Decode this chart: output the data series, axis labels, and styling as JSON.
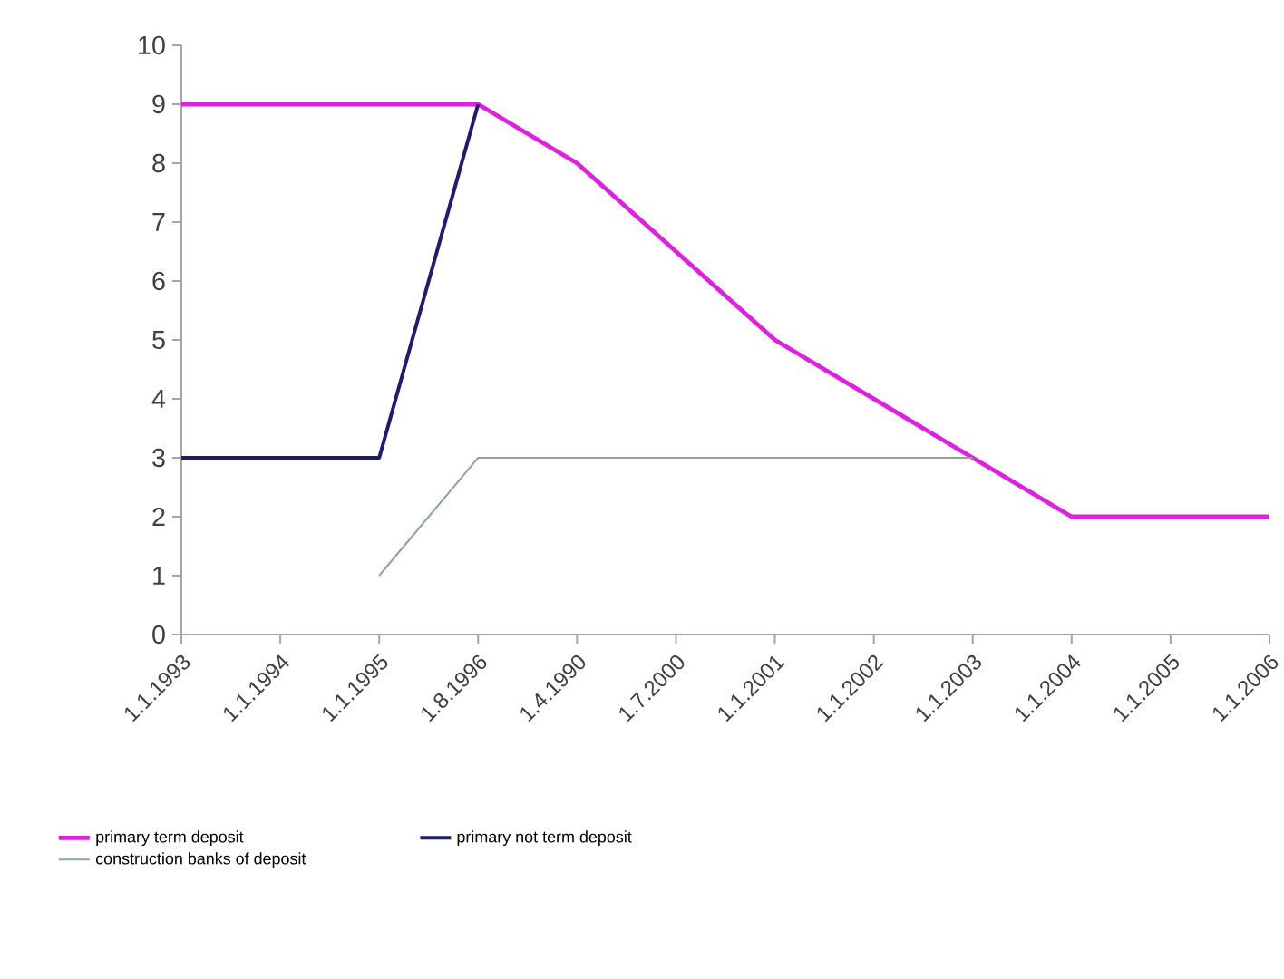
{
  "chart_data": {
    "type": "line",
    "categories": [
      "1.1.1993",
      "1.1.1994",
      "1.1.1995",
      "1.8.1996",
      "1.4.1990",
      "1.7.2000",
      "1.1.2001",
      "1.1.2002",
      "1.1.2003",
      "1.1.2004",
      "1.1.2005",
      "1.1.2006"
    ],
    "series": [
      {
        "name": "primary term deposit",
        "color": "#e020e0",
        "values": [
          9,
          9,
          9,
          9,
          8,
          6.5,
          5,
          4,
          3,
          2,
          2,
          2
        ]
      },
      {
        "name": "primary not term deposit",
        "color": "#1c1c70",
        "values": [
          3,
          3,
          3,
          9,
          null,
          null,
          null,
          null,
          null,
          null,
          null,
          null
        ]
      },
      {
        "name": "construction banks of deposit",
        "color": "#8aaa8a",
        "values": [
          null,
          null,
          1,
          3,
          3,
          3,
          3,
          3,
          3,
          null,
          null,
          null
        ]
      }
    ],
    "ylim": [
      0,
      10
    ],
    "yticks": [
      0,
      1,
      2,
      3,
      4,
      5,
      6,
      7,
      8,
      9,
      10
    ],
    "grid": false,
    "legend": "bottom",
    "marker": "none",
    "line_style": "solid"
  }
}
